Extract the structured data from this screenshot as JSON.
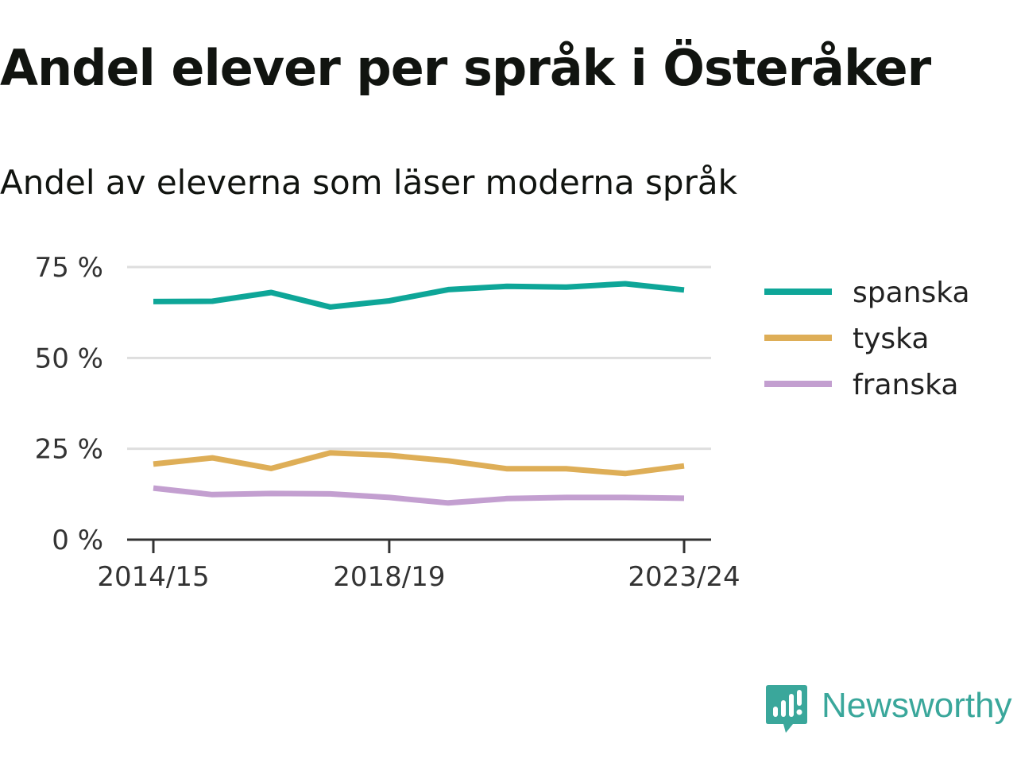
{
  "title": "Andel elever per språk i Österåker",
  "subtitle": "Andel av eleverna som läser moderna språk",
  "brand": {
    "name": "Newsworthy",
    "color": "#3aa79b",
    "icon": "newsworthy-logo-icon"
  },
  "chart_data": {
    "type": "line",
    "title": "Andel elever per språk i Österåker",
    "subtitle": "Andel av eleverna som läser moderna språk",
    "x": [
      "2014/15",
      "2015/16",
      "2016/17",
      "2017/18",
      "2018/19",
      "2019/20",
      "2020/21",
      "2021/22",
      "2022/23",
      "2023/24"
    ],
    "x_tick_labels": [
      "2014/15",
      "2018/19",
      "2023/24"
    ],
    "y_ticks": [
      0,
      25,
      50,
      75
    ],
    "y_tick_labels": [
      "0 %",
      "25 %",
      "50 %",
      "75 %"
    ],
    "ylim": [
      0,
      75
    ],
    "y_unit": "%",
    "grid": true,
    "legend_position": "right",
    "series": [
      {
        "name": "spanska",
        "color": "#0ea698",
        "values": [
          65.5,
          65.6,
          68.0,
          64.0,
          65.7,
          68.8,
          69.7,
          69.5,
          70.4,
          68.7
        ]
      },
      {
        "name": "tyska",
        "color": "#deae57",
        "values": [
          20.8,
          22.5,
          19.6,
          23.9,
          23.2,
          21.7,
          19.5,
          19.5,
          18.2,
          20.3
        ]
      },
      {
        "name": "franska",
        "color": "#c39fd0",
        "values": [
          14.2,
          12.4,
          12.7,
          12.6,
          11.6,
          10.1,
          11.3,
          11.6,
          11.6,
          11.4
        ]
      }
    ]
  }
}
